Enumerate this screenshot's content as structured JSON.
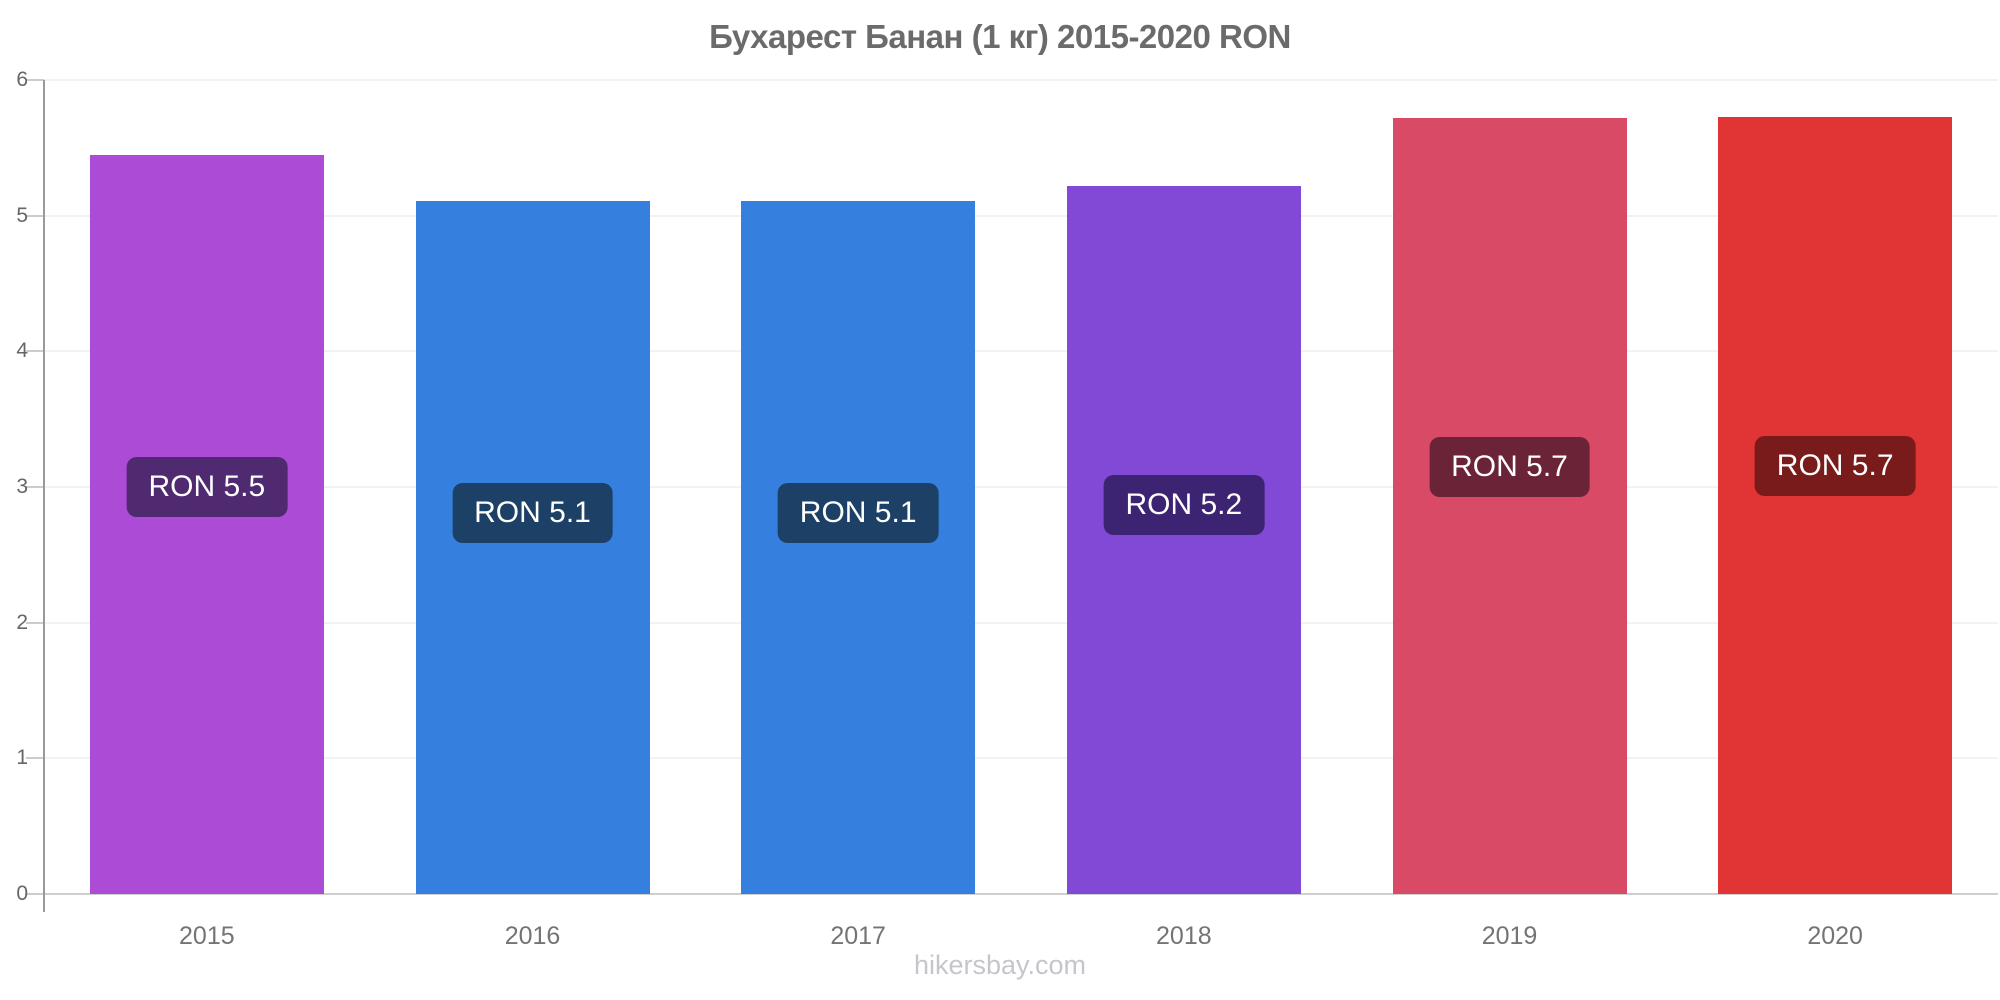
{
  "title": "Бухарест Банан (1 кг) 2015-2020 RON",
  "footer": "hikersbay.com",
  "chart_data": {
    "type": "bar",
    "title": "Бухарест Банан (1 кг) 2015-2020 RON",
    "categories": [
      "2015",
      "2016",
      "2017",
      "2018",
      "2019",
      "2020"
    ],
    "values": [
      5.45,
      5.11,
      5.11,
      5.22,
      5.72,
      5.73
    ],
    "value_labels": [
      "RON 5.5",
      "RON 5.1",
      "RON 5.1",
      "RON 5.2",
      "RON 5.7",
      "RON 5.7"
    ],
    "bar_colors": [
      "#ab4bd6",
      "#3580de",
      "#3580de",
      "#8149d6",
      "#d84a66",
      "#e13434"
    ],
    "value_label_bg": [
      "#4f2a70",
      "#1d4066",
      "#1d4066",
      "#3d2472",
      "#6b2437",
      "#7a1b1b"
    ],
    "currency": "RON",
    "xlabel": "",
    "ylabel": "",
    "ylim": [
      0,
      6
    ],
    "yticks": [
      "0",
      "1",
      "2",
      "3",
      "4",
      "5",
      "6"
    ],
    "grid": "horizontal",
    "legend": "none"
  },
  "colors": {
    "background": "#ffffff",
    "title_text": "#6b6b6b",
    "axis_line": "#999999",
    "grid_line": "#f2f2f2",
    "zero_line": "#cfcfcf",
    "tick": "#cccccc",
    "y_label_text": "#666666",
    "x_label_text": "#747474",
    "footer_text": "#c5c5cd",
    "badge_text": "#ffffff"
  }
}
